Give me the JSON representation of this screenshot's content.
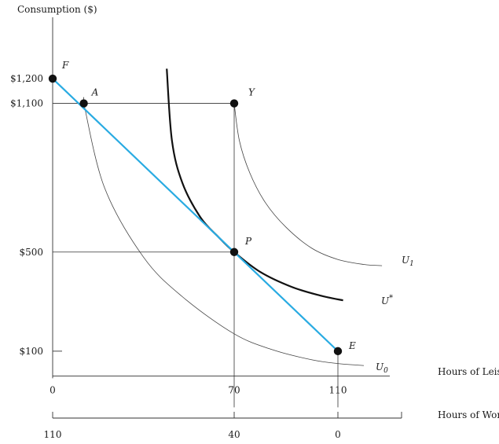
{
  "chart_data": {
    "type": "line",
    "title": "",
    "ylabel": "Consumption ($)",
    "xlabel": "Hours of Leisure",
    "x2label": "Hours of Work",
    "xlim": [
      0,
      130
    ],
    "ylim": [
      0,
      1400
    ],
    "x_ticks": [
      {
        "value": 0,
        "label": "0"
      },
      {
        "value": 70,
        "label": "70"
      },
      {
        "value": 110,
        "label": "110"
      }
    ],
    "work_ticks": [
      {
        "value": 0,
        "label": "110"
      },
      {
        "value": 70,
        "label": "40"
      },
      {
        "value": 110,
        "label": "0"
      }
    ],
    "y_ticks": [
      {
        "value": 100,
        "label": "$100"
      },
      {
        "value": 500,
        "label": "$500"
      },
      {
        "value": 1100,
        "label": "$1,100"
      },
      {
        "value": 1200,
        "label": "$1,200"
      }
    ],
    "budget_line": {
      "color": "#29abe2",
      "points": [
        [
          0,
          1200
        ],
        [
          110,
          100
        ]
      ]
    },
    "points": [
      {
        "label": "F",
        "x": 0,
        "y": 1200
      },
      {
        "label": "A",
        "x": 12,
        "y": 1100
      },
      {
        "label": "Y",
        "x": 70,
        "y": 1100
      },
      {
        "label": "P",
        "x": 70,
        "y": 500
      },
      {
        "label": "E",
        "x": 110,
        "y": 100
      }
    ],
    "curves": [
      {
        "label": "U0",
        "style": "thin",
        "x": [
          12,
          20,
          35,
          50,
          70,
          85,
          100,
          110,
          120
        ],
        "y": [
          1100,
          760,
          480,
          320,
          170,
          105,
          65,
          50,
          42
        ]
      },
      {
        "label": "U*",
        "style": "thick",
        "x": [
          44,
          46,
          50,
          57,
          64,
          70,
          80,
          92,
          103,
          112
        ],
        "y": [
          1240,
          950,
          780,
          640,
          560,
          500,
          420,
          360,
          325,
          305
        ]
      },
      {
        "label": "U1",
        "style": "thin",
        "x": [
          70,
          72,
          76,
          82,
          90,
          100,
          110,
          120,
          127
        ],
        "y": [
          1100,
          950,
          820,
          700,
          600,
          515,
          470,
          450,
          445
        ]
      }
    ],
    "u0_label": "U",
    "u0_sub": "0",
    "u1_label": "U",
    "u1_sub": "1",
    "ustar_label": "U",
    "ustar_sup": "*",
    "grid": false,
    "legend": "none"
  }
}
